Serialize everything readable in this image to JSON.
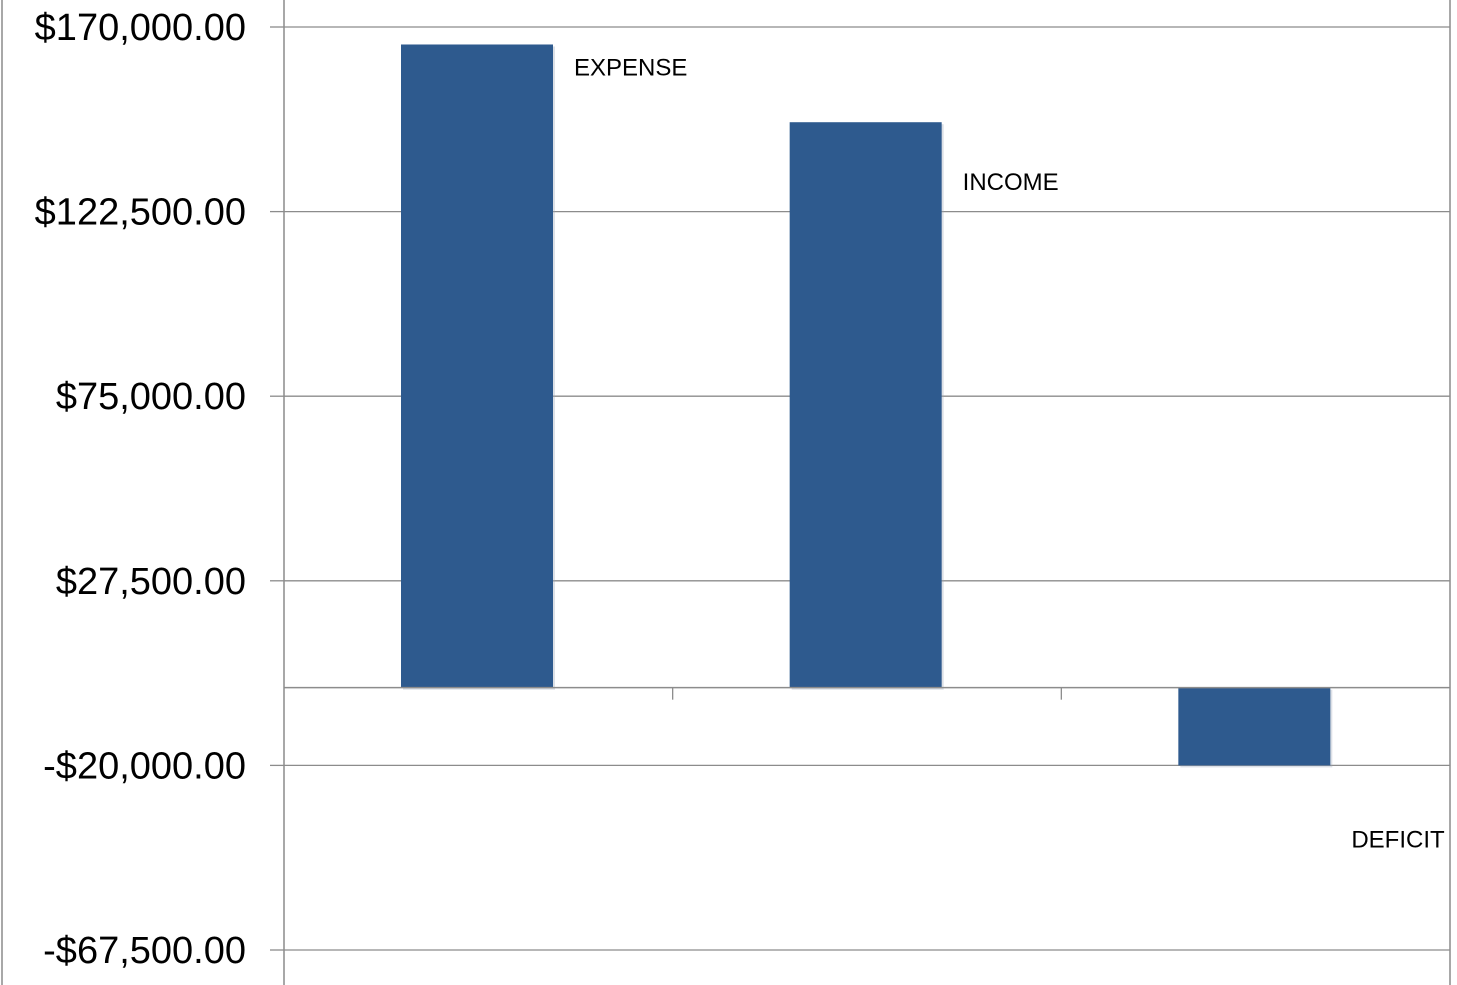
{
  "chart_data": {
    "type": "bar",
    "categories": [
      "EXPENSE",
      "INCOME",
      "DEFICIT"
    ],
    "values": [
      165500,
      145500,
      -20000
    ],
    "ylim": [
      -67500,
      170000
    ],
    "yticks": [
      170000,
      122500,
      75000,
      27500,
      -20000,
      -67500
    ],
    "ytick_labels": [
      "$170,000.00",
      "$122,500.00",
      "$75,000.00",
      "$27,500.00",
      "-$20,000.00",
      "-$67,500.00"
    ],
    "data_labels": [
      "EXPENSE",
      "INCOME",
      "DEFICIT"
    ],
    "grid": true,
    "legend": false,
    "title": "",
    "xlabel": "",
    "ylabel": "",
    "bar_color": "#2E5A8E",
    "grid_color": "#8C8C8C"
  }
}
